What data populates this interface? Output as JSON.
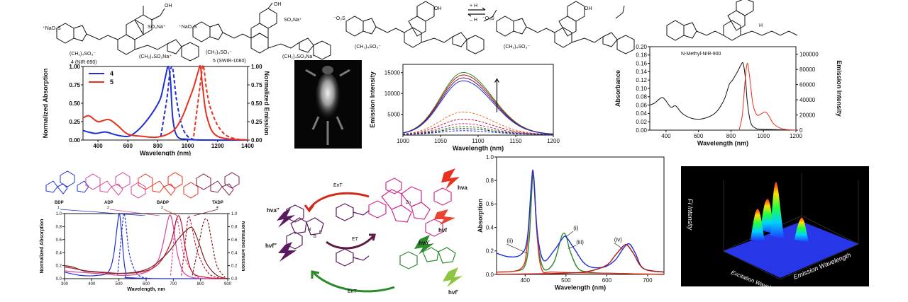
{
  "colors": {
    "blue": "#1f2fd8",
    "red": "#e8311e",
    "black": "#111111",
    "darkred": "#b3140f",
    "green": "#2b8a2b",
    "purple": "#5b1a5f",
    "magenta": "#d12a8a",
    "orange": "#e07020",
    "crimson": "#c0162c",
    "pink": "#d4449a",
    "maroon": "#7a1f1f"
  },
  "molecules": {
    "m1_label": "4 (NIR-890)",
    "m2_label": "5 (SWIR-1080)",
    "m3_label": "N-Methyl-NIR-900",
    "eq_top": "+ H",
    "eq_bottom": "– H"
  },
  "bodipy": {
    "labels": [
      "BDP",
      "ADP",
      "BADP",
      "TADP"
    ],
    "numbers": [
      "1",
      "2",
      "3",
      "4"
    ]
  },
  "scheme": {
    "labels": [
      "hνa",
      "hνf",
      "hνa″",
      "hνf″",
      "hνa′",
      "hνf′",
      "EnT",
      "ET",
      "EnT"
    ],
    "atoms": [
      "Zn",
      "N",
      "B",
      "F"
    ]
  },
  "mouse_image": {
    "description_icon": "mouse-fluorescence-image"
  },
  "surface3d": {
    "zlabel": "FI Intensity",
    "xlabel": "Excitation Wavelength",
    "ylabel": "Emission Wavelength"
  },
  "chart_data": [
    {
      "id": "panel-a",
      "type": "line",
      "title": "",
      "xlabel": "Wavelength (nm)",
      "ylabel": "Normalized Absorption",
      "y2label": "Normalized Emission",
      "xlim": [
        300,
        1400
      ],
      "ylim": [
        0,
        1.0
      ],
      "y2lim": [
        0,
        1.0
      ],
      "x_ticks": [
        "400",
        "600",
        "800",
        "1000",
        "1200",
        "1400"
      ],
      "y_ticks": [
        "0.00",
        "0.25",
        "0.50",
        "0.75",
        "1.00"
      ],
      "y2_ticks": [
        "0.00",
        "0.25",
        "0.50",
        "0.75",
        "1.00"
      ],
      "legend": [
        "4",
        "5"
      ],
      "legend_position": "top-left",
      "series": [
        {
          "name": "4",
          "kind": "absorption",
          "color": "blue",
          "x": [
            300,
            380,
            450,
            520,
            600,
            660,
            720,
            780,
            820,
            850,
            870,
            885,
            900,
            930,
            1000,
            1100,
            1400
          ],
          "y": [
            0.13,
            0.09,
            0.11,
            0.07,
            0.05,
            0.12,
            0.25,
            0.42,
            0.58,
            0.85,
            1.0,
            0.8,
            0.3,
            0.05,
            0.01,
            0.0,
            0.0
          ]
        },
        {
          "name": "4",
          "kind": "emission",
          "color": "blue",
          "dashed": true,
          "x": [
            820,
            860,
            880,
            895,
            905,
            925,
            960,
            1000,
            1050
          ],
          "y": [
            0.05,
            0.55,
            0.9,
            1.0,
            0.9,
            0.55,
            0.2,
            0.05,
            0.0
          ]
        },
        {
          "name": "5",
          "kind": "absorption",
          "color": "red",
          "x": [
            300,
            340,
            400,
            470,
            530,
            600,
            700,
            800,
            900,
            960,
            1000,
            1040,
            1070,
            1085,
            1100,
            1130,
            1200,
            1400
          ],
          "y": [
            0.3,
            0.33,
            0.25,
            0.28,
            0.2,
            0.08,
            0.05,
            0.04,
            0.12,
            0.3,
            0.5,
            0.72,
            0.93,
            1.0,
            0.72,
            0.3,
            0.05,
            0.0
          ]
        },
        {
          "name": "5",
          "kind": "emission",
          "color": "red",
          "dashed": true,
          "x": [
            1040,
            1080,
            1100,
            1110,
            1125,
            1150,
            1200,
            1260,
            1340,
            1400
          ],
          "y": [
            0.05,
            0.7,
            1.0,
            0.95,
            0.7,
            0.45,
            0.2,
            0.06,
            0.01,
            0.0
          ]
        }
      ]
    },
    {
      "id": "panel-b",
      "type": "line",
      "title": "",
      "xlabel": "Wavelength (nm)",
      "ylabel": "Emission Intensity",
      "xlim": [
        1000,
        1200
      ],
      "ylim": [
        0,
        17000
      ],
      "x_ticks": [
        "1000",
        "1050",
        "1100",
        "1150",
        "1200"
      ],
      "y_ticks": [
        "5000",
        "10000",
        "15000"
      ],
      "peak_x": 1080,
      "series": [
        {
          "color": "green",
          "peak": 14900
        },
        {
          "color": "darkred",
          "peak": 14300
        },
        {
          "color": "purple",
          "peak": 13600
        },
        {
          "color": "blue",
          "peak": 12900
        },
        {
          "color": "orange",
          "peak": 5400
        },
        {
          "color": "crimson",
          "peak": 3700
        },
        {
          "color": "magenta",
          "peak": 2600
        },
        {
          "color": "green",
          "peak": 1900
        },
        {
          "color": "black",
          "peak": 1400
        },
        {
          "color": "blue",
          "peak": 900
        }
      ]
    },
    {
      "id": "panel-c",
      "type": "line",
      "title": "",
      "xlabel": "Wavelength (nm)",
      "ylabel": "Absorbance",
      "y2label": "Emission Intensity",
      "xlim": [
        300,
        1200
      ],
      "ylim": [
        0,
        0.2
      ],
      "y2lim": [
        0,
        110000
      ],
      "x_ticks": [
        "400",
        "600",
        "800",
        "1000",
        "1200"
      ],
      "y_ticks": [
        "0.00",
        "0.02",
        "0.04",
        "0.06",
        "0.08",
        "0.10",
        "0.12",
        "0.14",
        "0.16",
        "0.18",
        "0.20"
      ],
      "y2_ticks": [
        "0",
        "20000",
        "40000",
        "60000",
        "80000",
        "100000"
      ],
      "series": [
        {
          "kind": "absorbance",
          "color": "black",
          "x": [
            300,
            330,
            360,
            380,
            400,
            430,
            460,
            500,
            560,
            620,
            680,
            720,
            760,
            790,
            810,
            840,
            860,
            875,
            890,
            900,
            920,
            950,
            1000,
            1200
          ],
          "y": [
            0.06,
            0.065,
            0.075,
            0.078,
            0.07,
            0.055,
            0.058,
            0.04,
            0.028,
            0.027,
            0.035,
            0.048,
            0.075,
            0.11,
            0.12,
            0.14,
            0.155,
            0.16,
            0.12,
            0.07,
            0.02,
            0.005,
            0.002,
            0.0
          ]
        },
        {
          "kind": "emission",
          "color": "red",
          "x": [
            850,
            870,
            885,
            900,
            915,
            935,
            960,
            990,
            1010,
            1030,
            1060,
            1100,
            1150,
            1200
          ],
          "y": [
            0,
            20000,
            60000,
            88000,
            70000,
            35000,
            20000,
            22000,
            24000,
            20000,
            9000,
            3000,
            600,
            0
          ]
        }
      ]
    },
    {
      "id": "panel-d",
      "type": "line",
      "title": "",
      "xlabel": "Wavelength, nm",
      "ylabel": "Normalized Absorption",
      "y2label": "Normalized Emission",
      "xlim": [
        300,
        900
      ],
      "ylim": [
        0,
        1.0
      ],
      "x_ticks": [
        "300",
        "400",
        "500",
        "600",
        "700",
        "800",
        "900"
      ],
      "y_ticks": [
        "0.0",
        "0.2",
        "0.4",
        "0.6",
        "0.8",
        "1.0"
      ],
      "y2_ticks": [
        "0.0",
        "0.2",
        "0.4",
        "0.6",
        "0.8",
        "1.0"
      ],
      "series": [
        {
          "name": "BDP",
          "kind": "absorption",
          "color": "blue",
          "x": [
            300,
            360,
            420,
            460,
            480,
            495,
            502,
            510,
            525,
            560,
            900
          ],
          "y": [
            0.1,
            0.05,
            0.05,
            0.1,
            0.35,
            0.85,
            1.0,
            0.7,
            0.1,
            0.01,
            0.0
          ]
        },
        {
          "name": "BDP",
          "kind": "emission",
          "color": "blue",
          "dashed": true,
          "x": [
            495,
            510,
            518,
            525,
            540,
            570,
            620
          ],
          "y": [
            0.05,
            0.7,
            1.0,
            0.85,
            0.35,
            0.06,
            0.0
          ]
        },
        {
          "name": "ADP",
          "kind": "absorption",
          "color": "pink",
          "x": [
            300,
            350,
            420,
            520,
            600,
            640,
            660,
            680,
            690,
            700,
            720,
            760,
            900
          ],
          "y": [
            0.12,
            0.1,
            0.08,
            0.05,
            0.1,
            0.25,
            0.5,
            0.9,
            0.97,
            0.8,
            0.3,
            0.03,
            0.0
          ]
        },
        {
          "name": "ADP",
          "kind": "emission",
          "color": "pink",
          "dashed": true,
          "x": [
            690,
            705,
            712,
            720,
            740,
            780,
            820
          ],
          "y": [
            0.05,
            0.75,
            0.92,
            0.8,
            0.35,
            0.05,
            0.0
          ]
        },
        {
          "name": "BADP",
          "kind": "absorption",
          "color": "crimson",
          "x": [
            300,
            330,
            380,
            440,
            520,
            600,
            650,
            690,
            715,
            730,
            745,
            770,
            820,
            900
          ],
          "y": [
            0.18,
            0.16,
            0.12,
            0.1,
            0.08,
            0.12,
            0.25,
            0.55,
            0.95,
            0.85,
            0.45,
            0.1,
            0.02,
            0.0
          ]
        },
        {
          "name": "BADP",
          "kind": "emission",
          "color": "crimson",
          "dashed": true,
          "x": [
            730,
            745,
            755,
            765,
            790,
            830,
            880
          ],
          "y": [
            0.05,
            0.6,
            0.95,
            0.85,
            0.4,
            0.08,
            0.0
          ]
        },
        {
          "name": "TADP",
          "kind": "absorption",
          "color": "maroon",
          "x": [
            300,
            330,
            370,
            420,
            480,
            560,
            620,
            680,
            720,
            750,
            770,
            790,
            820,
            860,
            900
          ],
          "y": [
            0.2,
            0.18,
            0.12,
            0.1,
            0.08,
            0.1,
            0.18,
            0.4,
            0.62,
            0.75,
            0.78,
            0.6,
            0.25,
            0.05,
            0.0
          ]
        },
        {
          "name": "TADP",
          "kind": "emission",
          "color": "maroon",
          "dashed": true,
          "x": [
            770,
            790,
            810,
            825,
            840,
            860,
            890
          ],
          "y": [
            0.05,
            0.45,
            0.85,
            0.9,
            0.6,
            0.2,
            0.02
          ]
        }
      ]
    },
    {
      "id": "panel-e",
      "type": "line",
      "title": "",
      "xlabel": "Wavelength (nm)",
      "ylabel": "Absorption",
      "xlim": [
        330,
        740
      ],
      "ylim": [
        0,
        1.0
      ],
      "x_ticks": [
        "400",
        "500",
        "600",
        "700"
      ],
      "y_ticks": [
        "0.0",
        "0.2",
        "0.4",
        "0.6",
        "0.8",
        "1.0"
      ],
      "annotations": [
        "(i)",
        "(ii)",
        "(iii)",
        "(iv)"
      ],
      "series": [
        {
          "name": "(i)",
          "color": "green",
          "x": [
            330,
            380,
            400,
            410,
            420,
            430,
            445,
            470,
            490,
            500,
            510,
            530,
            560,
            600,
            740
          ],
          "y": [
            0.02,
            0.03,
            0.08,
            0.3,
            0.85,
            0.3,
            0.05,
            0.1,
            0.33,
            0.33,
            0.2,
            0.05,
            0.02,
            0.01,
            0.0
          ]
        },
        {
          "name": "(ii)",
          "color": "red",
          "x": [
            330,
            390,
            405,
            415,
            420,
            428,
            440,
            470,
            600,
            740
          ],
          "y": [
            0.02,
            0.05,
            0.25,
            0.75,
            0.87,
            0.4,
            0.05,
            0.02,
            0.01,
            0.0
          ]
        },
        {
          "name": "(iii)",
          "color": "blue",
          "x": [
            330,
            360,
            390,
            405,
            415,
            420,
            430,
            445,
            470,
            490,
            500,
            520,
            550,
            590,
            620,
            640,
            655,
            670,
            690,
            740
          ],
          "y": [
            0.18,
            0.15,
            0.17,
            0.3,
            0.75,
            0.86,
            0.35,
            0.12,
            0.2,
            0.3,
            0.32,
            0.22,
            0.08,
            0.06,
            0.12,
            0.22,
            0.26,
            0.18,
            0.05,
            0.02
          ]
        },
        {
          "name": "(iv)",
          "color": "darkred",
          "x": [
            330,
            500,
            560,
            600,
            620,
            640,
            650,
            665,
            690,
            740
          ],
          "y": [
            0.0,
            0.01,
            0.03,
            0.08,
            0.16,
            0.24,
            0.25,
            0.18,
            0.05,
            0.02
          ]
        }
      ]
    }
  ]
}
